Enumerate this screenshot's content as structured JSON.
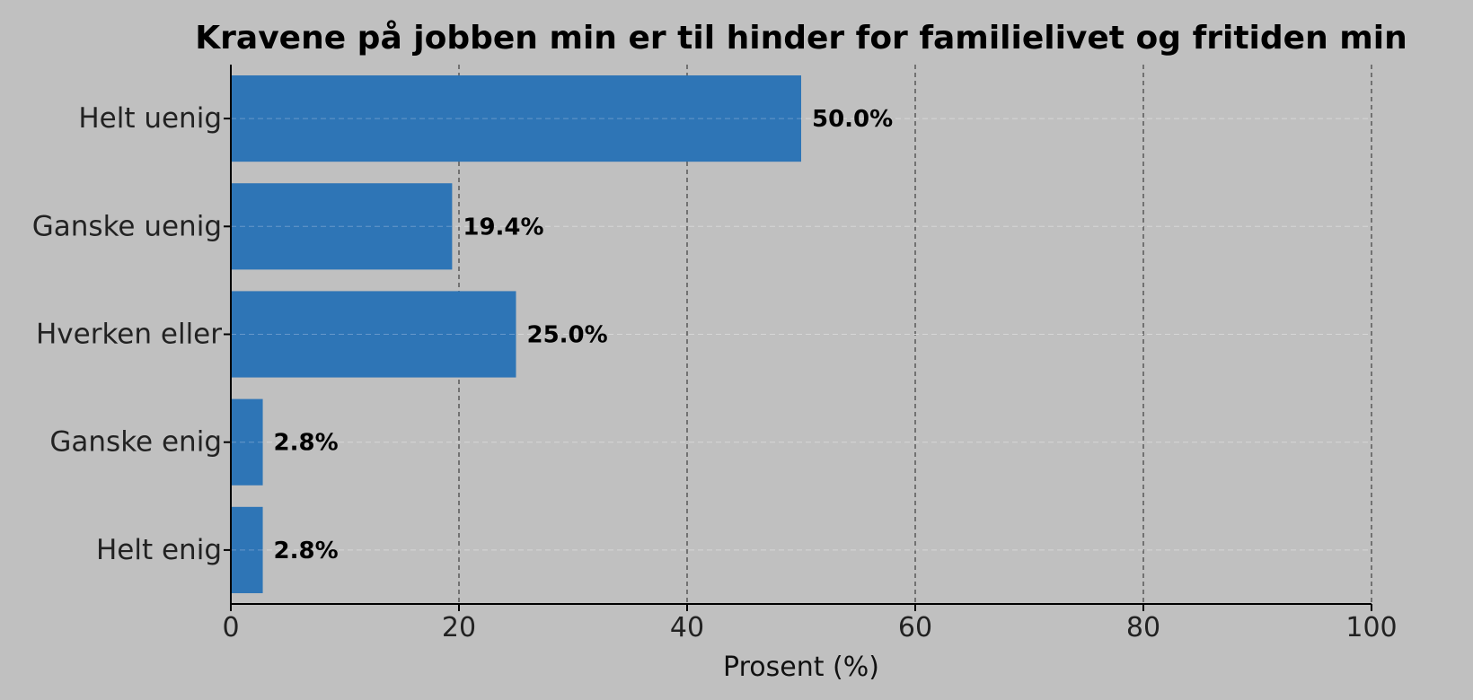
{
  "chart_data": {
    "type": "bar",
    "orientation": "horizontal",
    "title": "Kravene på jobben min er til hinder for familielivet og fritiden min",
    "xlabel": "Prosent (%)",
    "ylabel": "",
    "categories": [
      "Helt uenig",
      "Ganske uenig",
      "Hverken eller",
      "Ganske enig",
      "Helt enig"
    ],
    "values": [
      50.0,
      19.4,
      25.0,
      2.8,
      2.8
    ],
    "value_labels": [
      "50.0%",
      "19.4%",
      "25.0%",
      "2.8%",
      "2.8%"
    ],
    "xlim": [
      0,
      100
    ],
    "xticks": [
      0,
      20,
      40,
      60,
      80,
      100
    ],
    "xtick_labels": [
      "0",
      "20",
      "40",
      "60",
      "80",
      "100"
    ],
    "grid": true,
    "bar_color": "#2e75b6",
    "background_color": "#c0c0c0"
  }
}
